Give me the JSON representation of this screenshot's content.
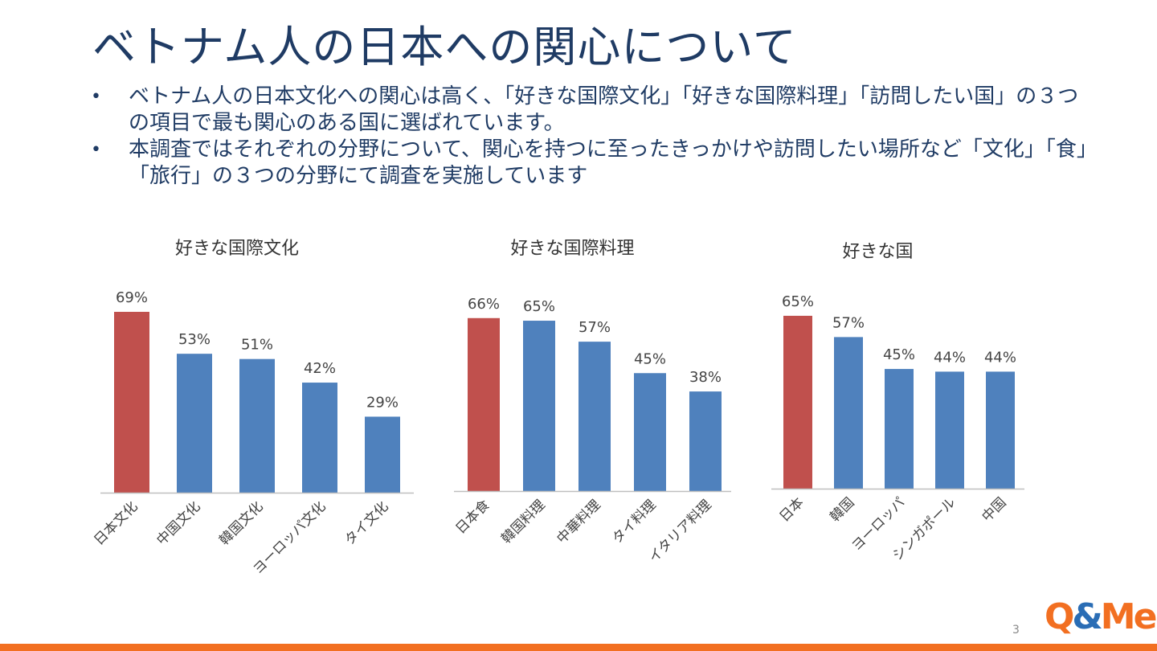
{
  "slide": {
    "title": "ベトナム人の日本への関心について",
    "bullets": [
      "ベトナム人の日本文化への関心は高く、「好きな国際文化」「好きな国際料理」「訪問したい国」の３つの項目で最も関心のある国に選ばれています。",
      "本調査ではそれぞれの分野について、関心を持つに至ったきっかけや訪問したい場所など「文化」「食」「旅行」の３つの分野にて調査を実施しています"
    ],
    "bullet_symbol": "•",
    "page_number": "3",
    "logo": {
      "q": "Q",
      "amp": "&",
      "me": "Me"
    }
  },
  "colors": {
    "highlight": "#c0504d",
    "bar": "#4f81bd",
    "title": "#1f3b64",
    "accent": "#f26f21",
    "axis": "#bfbfbf"
  },
  "chart_data": [
    {
      "type": "bar",
      "title": "好きな国際文化",
      "categories": [
        "日本文化",
        "中国文化",
        "韓国文化",
        "ヨーロッパ文化",
        "タイ文化"
      ],
      "values": [
        69,
        53,
        51,
        42,
        29
      ],
      "labels": [
        "69%",
        "53%",
        "51%",
        "42%",
        "29%"
      ],
      "highlight_index": 0,
      "ylim": [
        0,
        69
      ]
    },
    {
      "type": "bar",
      "title": "好きな国際料理",
      "categories": [
        "日本食",
        "韓国料理",
        "中華料理",
        "タイ料理",
        "イタリア料理"
      ],
      "values": [
        66,
        65,
        57,
        45,
        38
      ],
      "labels": [
        "66%",
        "65%",
        "57%",
        "45%",
        "38%"
      ],
      "highlight_index": 0,
      "ylim": [
        0,
        69
      ]
    },
    {
      "type": "bar",
      "title": "好きな国",
      "categories": [
        "日本",
        "韓国",
        "ヨーロッパ",
        "シンガポール",
        "中国"
      ],
      "values": [
        65,
        57,
        45,
        44,
        44
      ],
      "labels": [
        "65%",
        "57%",
        "45%",
        "44%",
        "44%"
      ],
      "highlight_index": 0,
      "ylim": [
        0,
        68
      ]
    }
  ]
}
